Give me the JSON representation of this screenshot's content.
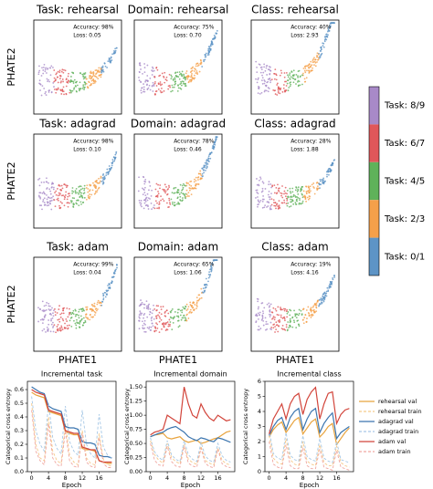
{
  "phate": {
    "ylabel": "PHATE2",
    "xlabel": "PHATE1",
    "panels": [
      {
        "title": "Task: rehearsal",
        "accuracy": "Accuracy: 98%",
        "loss": "Loss: 0.05"
      },
      {
        "title": "Domain: rehearsal",
        "accuracy": "Accuracy: 75%",
        "loss": "Loss: 0.70"
      },
      {
        "title": "Class: rehearsal",
        "accuracy": "Accuracy: 40%",
        "loss": "Loss: 2.93"
      },
      {
        "title": "Task: adagrad",
        "accuracy": "Accuracy: 98%",
        "loss": "Loss: 0.10"
      },
      {
        "title": "Domain: adagrad",
        "accuracy": "Accuracy: 78%",
        "loss": "Loss: 0.46"
      },
      {
        "title": "Class: adagrad",
        "accuracy": "Accuracy: 28%",
        "loss": "Loss: 1.88"
      },
      {
        "title": "Task: adam",
        "accuracy": "Accuracy: 99%",
        "loss": "Loss: 0.04"
      },
      {
        "title": "Domain: adam",
        "accuracy": "Accuracy: 65%",
        "loss": "Loss: 1.06"
      },
      {
        "title": "Class: adam",
        "accuracy": "Accuracy: 19%",
        "loss": "Loss: 4.16"
      }
    ]
  },
  "colorbar": {
    "labels": [
      "Task: 8/9",
      "Task: 6/7",
      "Task: 4/5",
      "Task: 2/3",
      "Task: 0/1"
    ],
    "colors": [
      "#a889c8",
      "#e0575a",
      "#5fb25a",
      "#f5a04a",
      "#5d94c6"
    ]
  },
  "chart_data": [
    {
      "type": "line",
      "title": "Incremental task",
      "xlabel": "Epoch",
      "ylabel": "Categorical cross entropy",
      "x": [
        0,
        1,
        2,
        3,
        4,
        5,
        6,
        7,
        8,
        9,
        10,
        11,
        12,
        13,
        14,
        15,
        16,
        17,
        18,
        19
      ],
      "xlim": [
        -1,
        20
      ],
      "xticks": [
        0,
        4,
        8,
        12,
        16
      ],
      "ylim": [
        0,
        0.66
      ],
      "yticks": [
        {
          "value": 0,
          "label": "0.0"
        },
        0.1,
        0.2,
        0.3,
        0.4,
        0.5,
        0.6
      ],
      "series": [
        {
          "color": "#e8a33d",
          "dashed": false,
          "values": [
            0.58,
            0.56,
            0.55,
            0.54,
            0.44,
            0.43,
            0.42,
            0.41,
            0.29,
            0.28,
            0.27,
            0.27,
            0.17,
            0.16,
            0.16,
            0.15,
            0.08,
            0.07,
            0.06,
            0.06
          ]
        },
        {
          "color": "#f5c98a",
          "dashed": true,
          "values": [
            0.5,
            0.2,
            0.1,
            0.08,
            0.4,
            0.15,
            0.08,
            0.06,
            0.35,
            0.12,
            0.07,
            0.05,
            0.3,
            0.1,
            0.06,
            0.05,
            0.28,
            0.09,
            0.05,
            0.04
          ]
        },
        {
          "color": "#3b75af",
          "dashed": false,
          "values": [
            0.62,
            0.6,
            0.58,
            0.57,
            0.48,
            0.46,
            0.45,
            0.44,
            0.33,
            0.32,
            0.32,
            0.31,
            0.22,
            0.21,
            0.21,
            0.2,
            0.12,
            0.11,
            0.11,
            0.1
          ]
        },
        {
          "color": "#a6c8e6",
          "dashed": true,
          "values": [
            0.55,
            0.3,
            0.2,
            0.15,
            0.5,
            0.25,
            0.17,
            0.13,
            0.48,
            0.22,
            0.15,
            0.12,
            0.45,
            0.2,
            0.13,
            0.1,
            0.42,
            0.18,
            0.12,
            0.1
          ]
        },
        {
          "color": "#d2443a",
          "dashed": false,
          "values": [
            0.6,
            0.58,
            0.57,
            0.56,
            0.45,
            0.44,
            0.43,
            0.42,
            0.3,
            0.29,
            0.28,
            0.28,
            0.18,
            0.17,
            0.16,
            0.16,
            0.08,
            0.07,
            0.07,
            0.07
          ]
        },
        {
          "color": "#f0a6a0",
          "dashed": true,
          "values": [
            0.45,
            0.15,
            0.08,
            0.05,
            0.35,
            0.1,
            0.05,
            0.04,
            0.3,
            0.08,
            0.04,
            0.03,
            0.28,
            0.07,
            0.04,
            0.03,
            0.25,
            0.06,
            0.03,
            0.03
          ]
        }
      ]
    },
    {
      "type": "line",
      "title": "Incremental domain",
      "xlabel": "Epoch",
      "ylabel": "Categorical cross entropy",
      "x": [
        0,
        1,
        2,
        3,
        4,
        5,
        6,
        7,
        8,
        9,
        10,
        11,
        12,
        13,
        14,
        15,
        16,
        17,
        18,
        19
      ],
      "xlim": [
        -1,
        20
      ],
      "xticks": [
        0,
        4,
        8,
        12,
        16
      ],
      "ylim": [
        0,
        1.6
      ],
      "yticks": [
        {
          "value": 0,
          "label": "0.00"
        },
        0.25,
        {
          "value": 0.5,
          "label": "0.50"
        },
        0.75,
        {
          "value": 1,
          "label": "1.00"
        },
        1.25,
        {
          "value": 1.5,
          "label": "1.50"
        }
      ],
      "series": [
        {
          "color": "#e8a33d",
          "dashed": false,
          "values": [
            0.62,
            0.65,
            0.66,
            0.68,
            0.6,
            0.58,
            0.6,
            0.62,
            0.55,
            0.52,
            0.54,
            0.56,
            0.5,
            0.52,
            0.55,
            0.58,
            0.6,
            0.65,
            0.7,
            0.72
          ]
        },
        {
          "color": "#f5c98a",
          "dashed": true,
          "values": [
            0.55,
            0.3,
            0.2,
            0.15,
            0.5,
            0.25,
            0.18,
            0.14,
            0.48,
            0.22,
            0.16,
            0.13,
            0.45,
            0.2,
            0.15,
            0.12,
            0.42,
            0.2,
            0.14,
            0.12
          ]
        },
        {
          "color": "#3b75af",
          "dashed": false,
          "values": [
            0.62,
            0.65,
            0.68,
            0.7,
            0.75,
            0.78,
            0.8,
            0.75,
            0.7,
            0.62,
            0.58,
            0.55,
            0.6,
            0.58,
            0.55,
            0.53,
            0.6,
            0.58,
            0.55,
            0.52
          ]
        },
        {
          "color": "#a6c8e6",
          "dashed": true,
          "values": [
            0.6,
            0.35,
            0.25,
            0.2,
            0.55,
            0.3,
            0.22,
            0.18,
            0.55,
            0.3,
            0.22,
            0.18,
            0.52,
            0.28,
            0.2,
            0.17,
            0.5,
            0.28,
            0.2,
            0.17
          ]
        },
        {
          "color": "#d2443a",
          "dashed": false,
          "values": [
            0.65,
            0.7,
            0.72,
            0.75,
            1.0,
            0.95,
            0.9,
            0.85,
            1.5,
            1.2,
            1.0,
            0.95,
            1.2,
            1.05,
            0.95,
            0.9,
            1.0,
            0.95,
            0.9,
            0.92
          ]
        },
        {
          "color": "#f0a6a0",
          "dashed": true,
          "values": [
            0.5,
            0.2,
            0.12,
            0.1,
            0.45,
            0.18,
            0.1,
            0.08,
            0.45,
            0.15,
            0.1,
            0.08,
            0.42,
            0.15,
            0.09,
            0.07,
            0.4,
            0.14,
            0.09,
            0.07
          ]
        }
      ]
    },
    {
      "type": "line",
      "title": "Incremental class",
      "xlabel": "Epoch",
      "ylabel": "Categorical cross entropy",
      "x": [
        0,
        1,
        2,
        3,
        4,
        5,
        6,
        7,
        8,
        9,
        10,
        11,
        12,
        13,
        14,
        15,
        16,
        17,
        18,
        19
      ],
      "xlim": [
        -1,
        20
      ],
      "xticks": [
        0,
        4,
        8,
        12,
        16
      ],
      "ylim": [
        0,
        6
      ],
      "yticks": [
        0,
        1,
        2,
        3,
        4,
        5,
        6
      ],
      "series": [
        {
          "name": "rehearsal val",
          "color": "#e8a33d",
          "dashed": false,
          "values": [
            2.3,
            2.8,
            3.1,
            3.3,
            2.6,
            3.0,
            3.4,
            3.6,
            2.5,
            2.9,
            3.3,
            3.5,
            2.3,
            2.6,
            3.0,
            3.2,
            1.8,
            2.2,
            2.6,
            2.9
          ]
        },
        {
          "name": "rehearsal train",
          "color": "#f5c98a",
          "dashed": true,
          "values": [
            2.4,
            0.9,
            0.6,
            0.5,
            2.2,
            0.8,
            0.5,
            0.4,
            2.0,
            0.7,
            0.5,
            0.4,
            1.8,
            0.6,
            0.4,
            0.4,
            1.7,
            0.6,
            0.4,
            0.3
          ]
        },
        {
          "name": "adagrad val",
          "color": "#3b75af",
          "dashed": false,
          "values": [
            2.4,
            3.0,
            3.4,
            3.6,
            2.8,
            3.6,
            4.0,
            4.2,
            2.8,
            3.5,
            4.0,
            4.2,
            2.6,
            3.2,
            3.6,
            3.9,
            2.2,
            2.6,
            2.8,
            3.0
          ]
        },
        {
          "name": "adagrad train",
          "color": "#a6c8e6",
          "dashed": true,
          "values": [
            2.8,
            1.2,
            0.9,
            0.8,
            2.6,
            1.1,
            0.8,
            0.7,
            2.4,
            1.0,
            0.8,
            0.7,
            2.2,
            0.9,
            0.7,
            0.6,
            2.0,
            0.8,
            0.7,
            0.6
          ]
        },
        {
          "name": "adam val",
          "color": "#d2443a",
          "dashed": false,
          "values": [
            2.5,
            3.5,
            4.0,
            4.5,
            3.5,
            4.5,
            5.0,
            5.2,
            3.8,
            4.8,
            5.3,
            5.6,
            3.5,
            4.5,
            5.2,
            5.3,
            3.2,
            3.8,
            4.1,
            4.2
          ]
        },
        {
          "name": "adam train",
          "color": "#f0a6a0",
          "dashed": true,
          "values": [
            2.0,
            0.5,
            0.3,
            0.2,
            1.8,
            0.4,
            0.2,
            0.2,
            1.6,
            0.4,
            0.2,
            0.2,
            1.5,
            0.3,
            0.2,
            0.1,
            1.4,
            0.3,
            0.2,
            0.1
          ]
        }
      ]
    }
  ]
}
